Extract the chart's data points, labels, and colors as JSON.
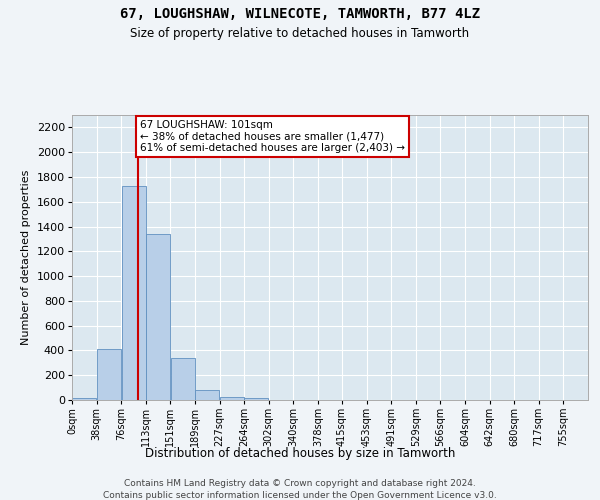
{
  "title": "67, LOUGHSHAW, WILNECOTE, TAMWORTH, B77 4LZ",
  "subtitle": "Size of property relative to detached houses in Tamworth",
  "xlabel": "Distribution of detached houses by size in Tamworth",
  "ylabel": "Number of detached properties",
  "bar_color": "#b8cfe8",
  "bar_edge_color": "#6090c0",
  "plot_bg_color": "#dce8f0",
  "fig_bg_color": "#f0f4f8",
  "annotation_text": "67 LOUGHSHAW: 101sqm\n← 38% of detached houses are smaller (1,477)\n61% of semi-detached houses are larger (2,403) →",
  "vline_x": 101,
  "vline_color": "#cc0000",
  "categories": [
    "0sqm",
    "38sqm",
    "76sqm",
    "113sqm",
    "151sqm",
    "189sqm",
    "227sqm",
    "264sqm",
    "302sqm",
    "340sqm",
    "378sqm",
    "415sqm",
    "453sqm",
    "491sqm",
    "529sqm",
    "566sqm",
    "604sqm",
    "642sqm",
    "680sqm",
    "717sqm",
    "755sqm"
  ],
  "bin_edges": [
    0,
    38,
    76,
    113,
    151,
    189,
    227,
    264,
    302,
    340,
    378,
    415,
    453,
    491,
    529,
    566,
    604,
    642,
    680,
    717,
    755,
    793
  ],
  "values": [
    20,
    410,
    1730,
    1340,
    340,
    80,
    25,
    20,
    0,
    0,
    0,
    0,
    0,
    0,
    0,
    0,
    0,
    0,
    0,
    0,
    0
  ],
  "ylim": [
    0,
    2300
  ],
  "yticks": [
    0,
    200,
    400,
    600,
    800,
    1000,
    1200,
    1400,
    1600,
    1800,
    2000,
    2200
  ],
  "footer_line1": "Contains HM Land Registry data © Crown copyright and database right 2024.",
  "footer_line2": "Contains public sector information licensed under the Open Government Licence v3.0."
}
